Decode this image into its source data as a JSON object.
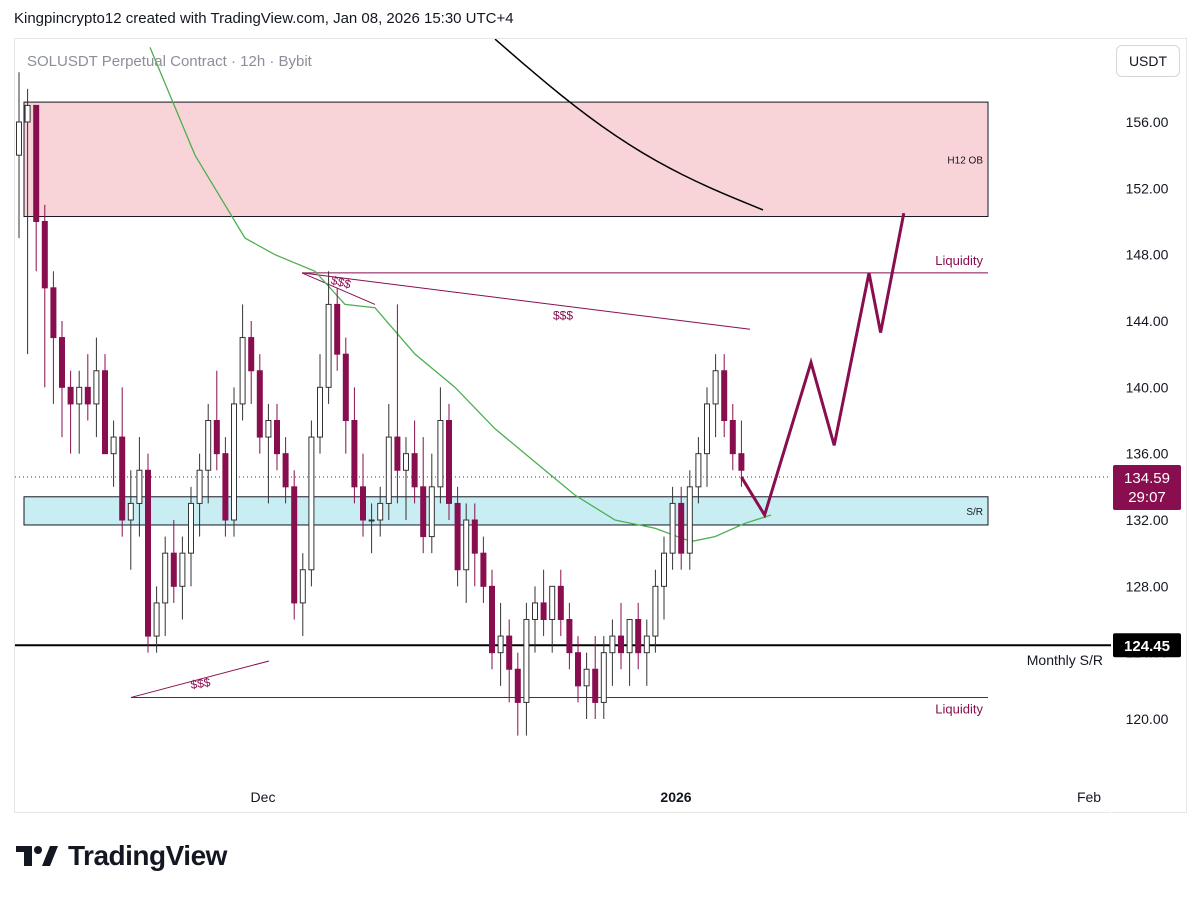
{
  "header": {
    "text": "Kingpincrypto12 created with TradingView.com, Jan 08, 2026 15:30 UTC+4"
  },
  "currency_button": "USDT",
  "footer": {
    "brand": "TradingView"
  },
  "chart_data": {
    "type": "candlestick",
    "title": "SOLUSDT Perpetual Contract · 12h · Bybit",
    "y_axis": {
      "ticks": [
        120,
        124,
        128,
        132,
        136,
        140,
        144,
        148,
        152,
        156
      ],
      "tick_labels": [
        "120.00",
        "124.00",
        "128.00",
        "132.00",
        "136.00",
        "140.00",
        "144.00",
        "148.00",
        "152.00",
        "156.00"
      ],
      "range": [
        116,
        160
      ]
    },
    "x_axis": {
      "tick_labels": [
        "Dec",
        "2026",
        "Feb"
      ]
    },
    "last_price": {
      "value": 134.59,
      "label": "134.59",
      "countdown": "29:07",
      "color": "#880e4f"
    },
    "level_124": {
      "value": 124.45,
      "label": "124.45"
    },
    "zones": [
      {
        "name": "H12 OB",
        "from": 150.3,
        "to": 157.2,
        "color": "#f8d4d8"
      },
      {
        "name": "S/R",
        "from": 131.7,
        "to": 133.4,
        "color": "#c8eef4"
      }
    ],
    "annotations": {
      "liquidity_top": "Liquidity",
      "liquidity_bottom": "Liquidity",
      "monthly_sr": "Monthly S/R",
      "dollar_1": "$$$",
      "dollar_2": "$$$",
      "dollar_3": "$$$"
    },
    "levels": {
      "liquidity_high": 146.9,
      "liquidity_low": 121.3,
      "monthly_sr": 124.45
    },
    "colors": {
      "up": "#ffffff",
      "down": "#880e4f",
      "wick": "#333333",
      "ma_fast": "#4caf50",
      "ma_slow": "#000000",
      "projection": "#880e4f"
    },
    "candles": [
      [
        154,
        159,
        149,
        156
      ],
      [
        156,
        158,
        142,
        157
      ],
      [
        157,
        157,
        147,
        150
      ],
      [
        150,
        151,
        140,
        146
      ],
      [
        146,
        147,
        139,
        143
      ],
      [
        143,
        144,
        137,
        140
      ],
      [
        140,
        141,
        136,
        139
      ],
      [
        139,
        141,
        136,
        140
      ],
      [
        140,
        142,
        138,
        139
      ],
      [
        139,
        143,
        137,
        141
      ],
      [
        141,
        142,
        136,
        136
      ],
      [
        136,
        138,
        134,
        137
      ],
      [
        137,
        140,
        131,
        132
      ],
      [
        132,
        135,
        129,
        133
      ],
      [
        133,
        137,
        131,
        135
      ],
      [
        135,
        136,
        124,
        125
      ],
      [
        125,
        128,
        124,
        127
      ],
      [
        127,
        131,
        125,
        130
      ],
      [
        130,
        132,
        127,
        128
      ],
      [
        128,
        131,
        126,
        130
      ],
      [
        130,
        134,
        128,
        133
      ],
      [
        133,
        136,
        131,
        135
      ],
      [
        135,
        139,
        133,
        138
      ],
      [
        138,
        141,
        135,
        136
      ],
      [
        136,
        137,
        131,
        132
      ],
      [
        132,
        140,
        131,
        139
      ],
      [
        139,
        145,
        138,
        143
      ],
      [
        143,
        144,
        139,
        141
      ],
      [
        141,
        142,
        136,
        137
      ],
      [
        137,
        139,
        133,
        138
      ],
      [
        138,
        139,
        135,
        136
      ],
      [
        136,
        137,
        133,
        134
      ],
      [
        134,
        135,
        126,
        127
      ],
      [
        127,
        130,
        125,
        129
      ],
      [
        129,
        138,
        128,
        137
      ],
      [
        137,
        142,
        136,
        140
      ],
      [
        140,
        147,
        139,
        145
      ],
      [
        145,
        146,
        141,
        142
      ],
      [
        142,
        143,
        136,
        138
      ],
      [
        138,
        140,
        133,
        134
      ],
      [
        134,
        136,
        131,
        132
      ],
      [
        132,
        133,
        130,
        132
      ],
      [
        132,
        134,
        131,
        133
      ],
      [
        133,
        139,
        132,
        137
      ],
      [
        137,
        145,
        133,
        135
      ],
      [
        135,
        137,
        132,
        136
      ],
      [
        136,
        138,
        133,
        134
      ],
      [
        134,
        137,
        130,
        131
      ],
      [
        131,
        136,
        130,
        134
      ],
      [
        134,
        140,
        133,
        138
      ],
      [
        138,
        139,
        132,
        133
      ],
      [
        133,
        134,
        128,
        129
      ],
      [
        129,
        133,
        127,
        132
      ],
      [
        132,
        133,
        128,
        130
      ],
      [
        130,
        131,
        127,
        128
      ],
      [
        128,
        129,
        123,
        124
      ],
      [
        124,
        127,
        122,
        125
      ],
      [
        125,
        126,
        121,
        123
      ],
      [
        123,
        124,
        119,
        121
      ],
      [
        121,
        127,
        119,
        126
      ],
      [
        126,
        128,
        124,
        127
      ],
      [
        127,
        129,
        125,
        126
      ],
      [
        126,
        128,
        124,
        128
      ],
      [
        128,
        129,
        125,
        126
      ],
      [
        126,
        127,
        123,
        124
      ],
      [
        124,
        125,
        121,
        122
      ],
      [
        122,
        124,
        120,
        123
      ],
      [
        123,
        125,
        120,
        121
      ],
      [
        121,
        125,
        120,
        124
      ],
      [
        124,
        126,
        122,
        125
      ],
      [
        125,
        127,
        123,
        124
      ],
      [
        124,
        126,
        122,
        126
      ],
      [
        126,
        127,
        123,
        124
      ],
      [
        124,
        126,
        122,
        125
      ],
      [
        125,
        129,
        124,
        128
      ],
      [
        128,
        131,
        126,
        130
      ],
      [
        130,
        134,
        129,
        133
      ],
      [
        133,
        134,
        129,
        130
      ],
      [
        130,
        135,
        129,
        134
      ],
      [
        134,
        137,
        133,
        136
      ],
      [
        136,
        140,
        134,
        139
      ],
      [
        139,
        142,
        137,
        141
      ],
      [
        141,
        142,
        137,
        138
      ],
      [
        138,
        139,
        135,
        136
      ],
      [
        136,
        138,
        134,
        135
      ]
    ],
    "projection": [
      [
        134.59,
        0
      ],
      [
        132.3,
        2
      ],
      [
        141.5,
        6
      ],
      [
        136.5,
        8
      ],
      [
        146.9,
        11
      ],
      [
        143.3,
        12
      ],
      [
        150.5,
        14
      ]
    ]
  }
}
